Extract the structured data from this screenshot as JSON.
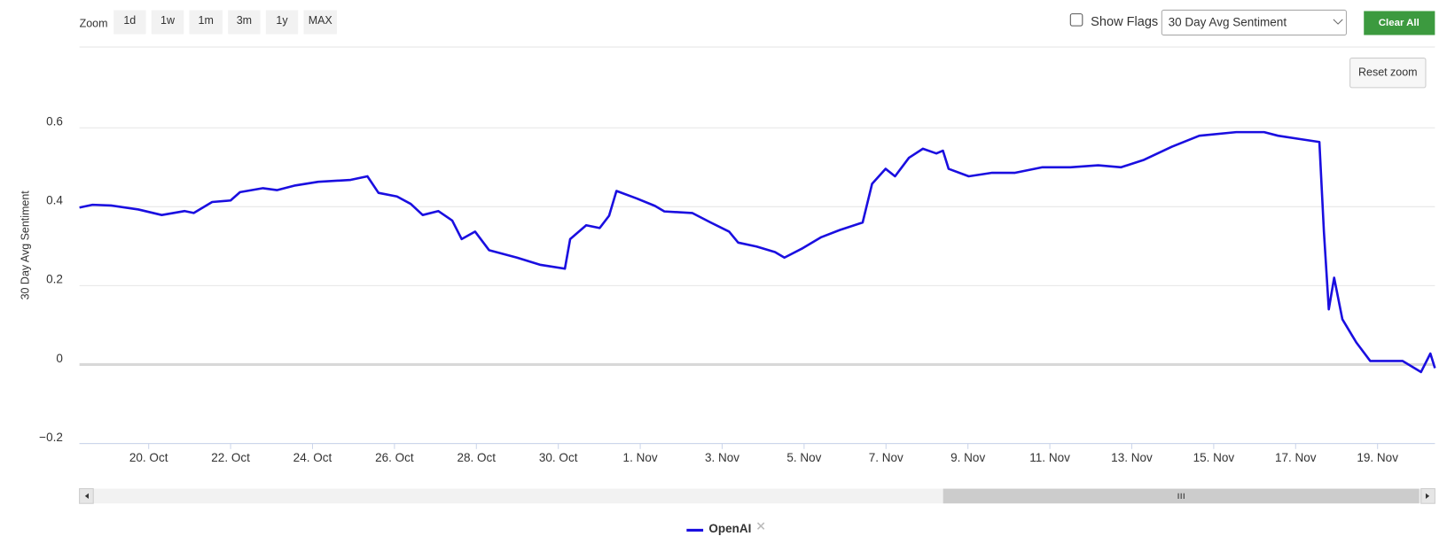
{
  "controls": {
    "zoom_label": "Zoom",
    "zoom_buttons": [
      "1d",
      "1w",
      "1m",
      "3m",
      "1y",
      "MAX"
    ],
    "show_flags": "Show Flags",
    "dropdown": "30 Day Avg Sentiment",
    "clear_all": "Clear All",
    "reset_zoom": "Reset zoom"
  },
  "chart_data": {
    "type": "line",
    "y_label": "30 Day Avg Sentiment",
    "xlim": [
      18.31,
      51.4
    ],
    "xticks": [
      {
        "value": 20,
        "label": "20. Oct"
      },
      {
        "value": 22,
        "label": "22. Oct"
      },
      {
        "value": 24,
        "label": "24. Oct"
      },
      {
        "value": 26,
        "label": "26. Oct"
      },
      {
        "value": 28,
        "label": "28. Oct"
      },
      {
        "value": 30,
        "label": "30. Oct"
      },
      {
        "value": 32,
        "label": "1. Nov"
      },
      {
        "value": 34,
        "label": "3. Nov"
      },
      {
        "value": 36,
        "label": "5. Nov"
      },
      {
        "value": 38,
        "label": "7. Nov"
      },
      {
        "value": 40,
        "label": "9. Nov"
      },
      {
        "value": 42,
        "label": "11. Nov"
      },
      {
        "value": 44,
        "label": "13. Nov"
      },
      {
        "value": 46,
        "label": "15. Nov"
      },
      {
        "value": 48,
        "label": "17. Nov"
      },
      {
        "value": 50,
        "label": "19. Nov"
      }
    ],
    "ylim": [
      -0.2,
      0.8
    ],
    "yticks": [
      {
        "value": -0.2,
        "label": "−0.2"
      },
      0,
      0.2,
      0.4,
      0.6
    ],
    "grid": true,
    "series": [
      {
        "name": "OpenAI",
        "color": "#1a0ee0",
        "x": [
          18.31,
          18.63,
          19.08,
          19.75,
          20.32,
          20.88,
          21.1,
          21.55,
          22.0,
          22.23,
          22.79,
          23.13,
          23.58,
          24.14,
          24.93,
          25.34,
          25.61,
          26.06,
          26.4,
          26.69,
          27.07,
          27.41,
          27.64,
          27.97,
          28.31,
          28.99,
          29.55,
          30.16,
          30.29,
          30.68,
          31.01,
          31.24,
          31.42,
          31.91,
          32.36,
          32.59,
          33.27,
          33.72,
          34.17,
          34.39,
          34.84,
          35.29,
          35.52,
          35.97,
          36.42,
          36.87,
          37.43,
          37.66,
          37.99,
          38.22,
          38.56,
          38.9,
          39.23,
          39.39,
          39.53,
          40.02,
          40.59,
          41.15,
          41.82,
          42.5,
          43.18,
          43.74,
          44.3,
          44.98,
          45.65,
          46.55,
          47.23,
          47.57,
          48.13,
          48.58,
          48.69,
          48.81,
          48.94,
          49.14,
          49.48,
          49.82,
          50.16,
          50.61,
          51.06,
          51.29,
          51.4
        ],
        "values": [
          0.398,
          0.405,
          0.403,
          0.393,
          0.379,
          0.389,
          0.384,
          0.412,
          0.416,
          0.437,
          0.447,
          0.442,
          0.454,
          0.463,
          0.468,
          0.477,
          0.435,
          0.426,
          0.407,
          0.379,
          0.389,
          0.365,
          0.318,
          0.337,
          0.29,
          0.271,
          0.253,
          0.243,
          0.318,
          0.353,
          0.346,
          0.377,
          0.44,
          0.421,
          0.402,
          0.388,
          0.384,
          0.36,
          0.337,
          0.309,
          0.299,
          0.285,
          0.271,
          0.295,
          0.323,
          0.341,
          0.36,
          0.458,
          0.496,
          0.477,
          0.524,
          0.547,
          0.535,
          0.542,
          0.496,
          0.477,
          0.486,
          0.486,
          0.5,
          0.5,
          0.505,
          0.5,
          0.519,
          0.552,
          0.58,
          0.589,
          0.589,
          0.58,
          0.571,
          0.564,
          0.337,
          0.14,
          0.22,
          0.115,
          0.056,
          0.009,
          0.009,
          0.009,
          -0.019,
          0.028,
          -0.009
        ]
      }
    ]
  }
}
